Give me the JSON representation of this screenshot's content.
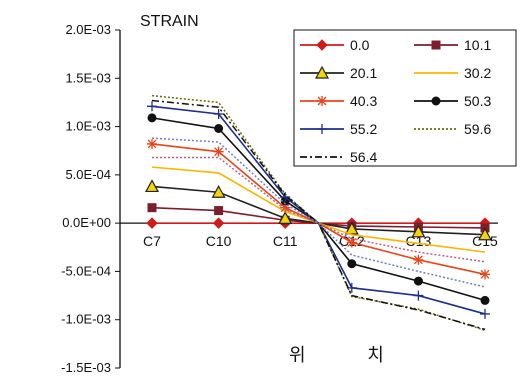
{
  "chart_data": {
    "type": "line",
    "title": "STRAIN",
    "xlabel": "위 치",
    "ylabel": "",
    "categories": [
      "C7",
      "C10",
      "C11",
      "C12",
      "C13",
      "C15"
    ],
    "x": [
      0,
      1,
      2,
      3,
      4,
      5
    ],
    "y_ticks": [
      "2.0E-03",
      "1.5E-03",
      "1.0E-03",
      "5.0E-04",
      "0.0E+00",
      "-5.0E-04",
      "-1.0E-03",
      "-1.5E-03"
    ],
    "ylim": [
      -0.0015,
      0.002
    ],
    "grid": false,
    "legend_position": "top-right",
    "series": [
      {
        "name": "0.0",
        "color": "#d11a1a",
        "marker": "diamond",
        "dash": "solid",
        "x": [
          0,
          1,
          2,
          2.5,
          3,
          4,
          5
        ],
        "values": [
          0.0,
          0.0,
          0.0,
          0.0,
          0.0,
          0.0,
          0.0
        ]
      },
      {
        "name": "10.1",
        "color": "#7a1f2b",
        "marker": "square",
        "dash": "solid",
        "x": [
          0,
          1,
          2,
          2.5,
          3,
          4,
          5
        ],
        "values": [
          0.00016,
          0.00013,
          3e-05,
          0.0,
          -3e-05,
          -4e-05,
          -5e-05
        ]
      },
      {
        "name": "20.1",
        "color": "#222222",
        "marker": "triangle",
        "dash": "solid",
        "x": [
          0,
          1,
          2,
          2.5,
          3,
          4,
          5
        ],
        "values": [
          0.00038,
          0.00032,
          5e-05,
          0.0,
          -6e-05,
          -9e-05,
          -0.00012
        ]
      },
      {
        "name": "30.2",
        "color": "#f5b800",
        "marker": "none",
        "dash": "solid",
        "x": [
          0,
          1,
          2,
          2.5,
          3,
          4,
          5
        ],
        "values": [
          0.00058,
          0.00052,
          0.00012,
          0.0,
          -0.00012,
          -0.00021,
          -0.0003
        ]
      },
      {
        "name": "40.3",
        "color": "#e8461a",
        "marker": "star",
        "dash": "solid",
        "x": [
          0,
          1,
          2,
          2.5,
          3,
          4,
          5
        ],
        "values": [
          0.00082,
          0.00074,
          0.00016,
          0.0,
          -0.0002,
          -0.00038,
          -0.00053
        ]
      },
      {
        "name": "50.3",
        "color": "#111111",
        "marker": "circle",
        "dash": "solid",
        "x": [
          0,
          1,
          2,
          2.5,
          3,
          4,
          5
        ],
        "values": [
          0.00109,
          0.00098,
          0.00023,
          0.0,
          -0.00042,
          -0.0006,
          -0.0008
        ]
      },
      {
        "name": "55.2",
        "color": "#1c2f8a",
        "marker": "plus",
        "dash": "solid",
        "x": [
          0,
          1,
          2,
          2.5,
          3,
          4,
          5
        ],
        "values": [
          0.00121,
          0.00113,
          0.00027,
          0.0,
          -0.00067,
          -0.00075,
          -0.00094
        ]
      },
      {
        "name": "59.6",
        "color": "#6a6a00",
        "marker": "none",
        "dash": "dotted",
        "x": [
          0,
          1,
          2,
          2.5,
          3,
          4,
          5
        ],
        "values": [
          0.00132,
          0.00125,
          0.0003,
          0.0,
          -0.00076,
          -0.00089,
          -0.00111
        ]
      },
      {
        "name": "56.4",
        "color": "#111111",
        "marker": "none",
        "dash": "dashdot",
        "x": [
          0,
          1,
          2,
          2.5,
          3,
          4,
          5
        ],
        "values": [
          0.00127,
          0.0012,
          0.00029,
          0.0,
          -0.00075,
          -0.0009,
          -0.0011
        ]
      },
      {
        "name": "",
        "color": "#c06080",
        "marker": "none",
        "dash": "dotted",
        "x": [
          0,
          1,
          2,
          2.5,
          3,
          4,
          5
        ],
        "values": [
          0.00068,
          0.00068,
          0.00014,
          0.0,
          -0.00016,
          -0.0003,
          -0.0004
        ]
      },
      {
        "name": "",
        "color": "#6f7fc8",
        "marker": "none",
        "dash": "dotted",
        "x": [
          0,
          1,
          2,
          2.5,
          3,
          4,
          5
        ],
        "values": [
          0.00088,
          0.00084,
          0.0002,
          0.0,
          -0.00033,
          -0.0005,
          -0.00066
        ]
      }
    ]
  }
}
